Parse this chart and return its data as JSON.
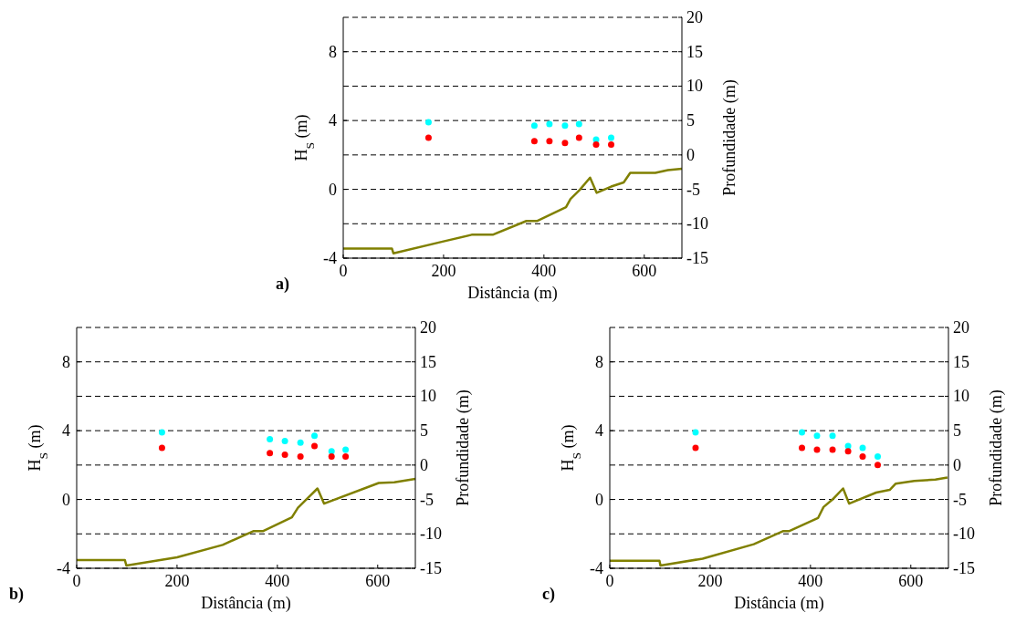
{
  "chart_data": [
    {
      "type": "scatter",
      "xlabel": "Distância (m)",
      "ylabel": "H$_{S}$ (m)",
      "y2label": "Profundidade (m)",
      "annotations": [
        "a)"
      ],
      "xlim": [
        0,
        675
      ],
      "xticks": [
        0,
        200,
        400,
        600
      ],
      "ylim": [
        -4,
        10
      ],
      "yticks": [
        -4,
        0,
        4,
        8
      ],
      "y2lim": [
        -15,
        20
      ],
      "y2ticks": [
        -15,
        -10,
        -5,
        0,
        5,
        10,
        15,
        20
      ],
      "grid": "y2",
      "series": [
        {
          "marker": "circle",
          "color": "#00ffff",
          "x": [
            170,
            381,
            411,
            442,
            470,
            504,
            534
          ],
          "values": [
            3.9,
            3.7,
            3.8,
            3.7,
            3.8,
            2.9,
            3.0
          ]
        },
        {
          "marker": "circle",
          "color": "#ff0000",
          "x": [
            170,
            381,
            411,
            442,
            470,
            504,
            534
          ],
          "values": [
            3.0,
            2.8,
            2.8,
            2.7,
            3.0,
            2.6,
            2.6
          ]
        },
        {
          "type": "line",
          "axis": "y2",
          "color": "#808000",
          "line_style": "solid",
          "x": [
            0,
            97,
            100,
            198,
            256,
            298,
            365,
            386,
            444,
            453,
            471,
            492,
            505,
            534,
            559,
            572,
            622,
            647,
            675
          ],
          "values": [
            -13.6,
            -13.6,
            -14.3,
            -12.6,
            -11.6,
            -11.6,
            -9.6,
            -9.6,
            -7.6,
            -6.4,
            -5.1,
            -3.3,
            -5.5,
            -4.6,
            -4.0,
            -2.6,
            -2.6,
            -2.2,
            -2.0
          ]
        }
      ]
    },
    {
      "type": "scatter",
      "xlabel": "Distância (m)",
      "ylabel": "H$_{S}$ (m)",
      "y2label": "Profundidade (m)",
      "annotations": [
        "b)"
      ],
      "xlim": [
        0,
        675
      ],
      "xticks": [
        0,
        200,
        400,
        600
      ],
      "ylim": [
        -4,
        10
      ],
      "yticks": [
        -4,
        0,
        4,
        8
      ],
      "y2lim": [
        -15,
        20
      ],
      "y2ticks": [
        -15,
        -10,
        -5,
        0,
        5,
        10,
        15,
        20
      ],
      "grid": "y2",
      "series": [
        {
          "marker": "circle",
          "color": "#00ffff",
          "x": [
            170,
            385,
            415,
            446,
            474,
            508,
            536
          ],
          "values": [
            3.9,
            3.5,
            3.4,
            3.3,
            3.7,
            2.8,
            2.9
          ]
        },
        {
          "marker": "circle",
          "color": "#ff0000",
          "x": [
            170,
            385,
            415,
            446,
            474,
            508,
            536
          ],
          "values": [
            3.0,
            2.7,
            2.6,
            2.5,
            3.1,
            2.5,
            2.5
          ]
        },
        {
          "type": "line",
          "axis": "y2",
          "color": "#808000",
          "line_style": "solid",
          "x": [
            0,
            96,
            99,
            200,
            291,
            352,
            371,
            429,
            441,
            459,
            480,
            493,
            602,
            633,
            675
          ],
          "values": [
            -13.8,
            -13.8,
            -14.6,
            -13.4,
            -11.6,
            -9.6,
            -9.6,
            -7.6,
            -6.2,
            -4.9,
            -3.4,
            -5.6,
            -2.6,
            -2.5,
            -2.0
          ]
        }
      ]
    },
    {
      "type": "scatter",
      "xlabel": "Distância (m)",
      "ylabel": "H$_{S}$ (m)",
      "y2label": "Profundidade (m)",
      "annotations": [
        "c)"
      ],
      "xlim": [
        0,
        675
      ],
      "xticks": [
        0,
        200,
        400,
        600
      ],
      "ylim": [
        -4,
        10
      ],
      "yticks": [
        -4,
        0,
        4,
        8
      ],
      "y2lim": [
        -15,
        20
      ],
      "y2ticks": [
        -15,
        -10,
        -5,
        0,
        5,
        10,
        15,
        20
      ],
      "grid": "y2",
      "series": [
        {
          "marker": "circle",
          "color": "#00ffff",
          "x": [
            171,
            383,
            413,
            444,
            475,
            504,
            534
          ],
          "values": [
            3.9,
            3.9,
            3.7,
            3.7,
            3.1,
            3.0,
            2.5
          ]
        },
        {
          "marker": "circle",
          "color": "#ff0000",
          "x": [
            171,
            383,
            413,
            444,
            475,
            504,
            534
          ],
          "values": [
            3.0,
            3.0,
            2.9,
            2.9,
            2.8,
            2.5,
            2.0
          ]
        },
        {
          "type": "line",
          "axis": "y2",
          "color": "#808000",
          "line_style": "solid",
          "x": [
            0,
            99,
            101,
            185,
            287,
            345,
            357,
            415,
            426,
            444,
            465,
            477,
            531,
            558,
            570,
            607,
            649,
            673
          ],
          "values": [
            -13.9,
            -13.9,
            -14.6,
            -13.6,
            -11.5,
            -9.6,
            -9.6,
            -7.7,
            -6.1,
            -5.0,
            -3.4,
            -5.6,
            -4.0,
            -3.6,
            -2.7,
            -2.3,
            -2.1,
            -1.8
          ]
        }
      ]
    }
  ]
}
